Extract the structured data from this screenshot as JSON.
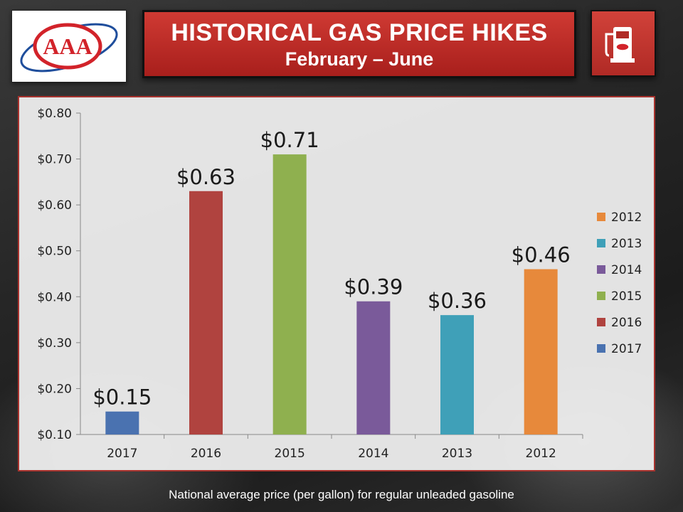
{
  "header": {
    "title": "HISTORICAL GAS PRICE HIKES",
    "subtitle": "February – June",
    "logo_text": "AAA"
  },
  "caption": "National average price (per gallon) for regular unleaded gasoline",
  "colors": {
    "brand_red": "#c0302a",
    "2017": "#4a72b0",
    "2016": "#b0433f",
    "2015": "#8fb04f",
    "2014": "#7a5a9a",
    "2013": "#3fa0b8",
    "2012": "#e7893b"
  },
  "chart_data": {
    "type": "bar",
    "categories": [
      "2017",
      "2016",
      "2015",
      "2014",
      "2013",
      "2012"
    ],
    "values": [
      0.15,
      0.63,
      0.71,
      0.39,
      0.36,
      0.46
    ],
    "data_labels": [
      "$0.15",
      "$0.63",
      "$0.71",
      "$0.39",
      "$0.36",
      "$0.46"
    ],
    "ylim": [
      0.1,
      0.8
    ],
    "y_ticks": [
      "$0.10",
      "$0.20",
      "$0.30",
      "$0.40",
      "$0.50",
      "$0.60",
      "$0.70",
      "$0.80"
    ],
    "y_tick_values": [
      0.1,
      0.2,
      0.3,
      0.4,
      0.5,
      0.6,
      0.7,
      0.8
    ],
    "legend": [
      "2012",
      "2013",
      "2014",
      "2015",
      "2016",
      "2017"
    ],
    "legend_position": "right",
    "grid": false,
    "title": "",
    "xlabel": "",
    "ylabel": ""
  }
}
